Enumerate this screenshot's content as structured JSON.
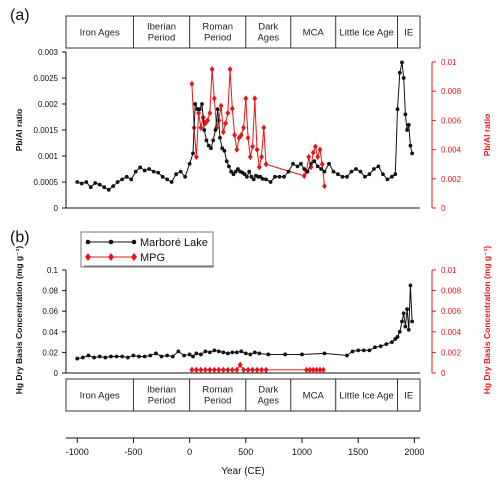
{
  "colors": {
    "black_series": "#111111",
    "red_series": "#e8141a"
  },
  "periods": [
    {
      "label": "Iron Ages",
      "start": -1000,
      "end": -500
    },
    {
      "label": "Iberian Period",
      "start": -500,
      "end": 0
    },
    {
      "label": "Roman Period",
      "start": 0,
      "end": 500
    },
    {
      "label": "Dark Ages",
      "start": 500,
      "end": 900
    },
    {
      "label": "MCA",
      "start": 900,
      "end": 1300
    },
    {
      "label": "Little Ice Age",
      "start": 1300,
      "end": 1850
    },
    {
      "label": "IE",
      "start": 1850,
      "end": 2000
    }
  ],
  "legend": {
    "items": [
      "Marboré Lake",
      "MPG"
    ]
  },
  "chart_data": [
    {
      "type": "line",
      "panel": "(a)",
      "ylabel": "Pb/Al ratio",
      "y2label": "Pb/Al ratio",
      "xlim": [
        -1100,
        2050
      ],
      "ylim": [
        0,
        0.003
      ],
      "y2lim": [
        0,
        0.01
      ],
      "yticks": [
        "0",
        "0.0005",
        "0.001",
        "0.0015",
        "0.002",
        "0.0025",
        "0.003"
      ],
      "y2ticks": [
        "0",
        "0.002",
        "0.004",
        "0.006",
        "0.008",
        "0.01"
      ],
      "series": [
        {
          "name": "Marboré Lake",
          "axis": "left",
          "x": [
            -1000,
            -960,
            -920,
            -880,
            -840,
            -800,
            -760,
            -720,
            -680,
            -640,
            -600,
            -560,
            -520,
            -480,
            -440,
            -400,
            -360,
            -320,
            -280,
            -240,
            -200,
            -160,
            -120,
            -80,
            -40,
            0,
            30,
            50,
            70,
            90,
            110,
            130,
            150,
            170,
            190,
            210,
            230,
            250,
            270,
            290,
            310,
            330,
            350,
            370,
            390,
            410,
            430,
            450,
            470,
            490,
            510,
            530,
            550,
            570,
            590,
            610,
            630,
            650,
            680,
            720,
            760,
            800,
            840,
            880,
            920,
            960,
            990,
            1020,
            1050,
            1080,
            1110,
            1140,
            1170,
            1200,
            1240,
            1280,
            1320,
            1360,
            1400,
            1440,
            1480,
            1520,
            1560,
            1600,
            1640,
            1680,
            1720,
            1760,
            1800,
            1830,
            1850,
            1870,
            1890,
            1905,
            1920,
            1935,
            1950,
            1965,
            1980
          ],
          "values": [
            0.0005,
            0.00047,
            0.0005,
            0.0004,
            0.00048,
            0.00045,
            0.0004,
            0.00035,
            0.00042,
            0.0005,
            0.00055,
            0.0006,
            0.00055,
            0.0007,
            0.00078,
            0.00072,
            0.00075,
            0.0007,
            0.00068,
            0.0006,
            0.00055,
            0.0005,
            0.00065,
            0.0007,
            0.0006,
            0.00085,
            0.00105,
            0.002,
            0.0019,
            0.0019,
            0.002,
            0.0015,
            0.0013,
            0.0012,
            0.00115,
            0.0013,
            0.0015,
            0.0019,
            0.00135,
            0.00115,
            0.0011,
            0.0009,
            0.0008,
            0.0007,
            0.00065,
            0.0007,
            0.00075,
            0.0007,
            0.00068,
            0.00065,
            0.0006,
            0.0007,
            0.0006,
            0.00055,
            0.00062,
            0.0006,
            0.0006,
            0.00056,
            0.00055,
            0.0005,
            0.0006,
            0.0006,
            0.0006,
            0.0007,
            0.00085,
            0.0008,
            0.00085,
            0.00075,
            0.0007,
            0.00085,
            0.0009,
            0.0008,
            0.00075,
            0.0007,
            0.00085,
            0.0007,
            0.00065,
            0.0006,
            0.0006,
            0.0007,
            0.00075,
            0.0007,
            0.0006,
            0.00065,
            0.00075,
            0.0008,
            0.00065,
            0.00055,
            0.0006,
            0.00065,
            0.0019,
            0.0026,
            0.0028,
            0.0025,
            0.0018,
            0.0015,
            0.0016,
            0.0012,
            0.00105
          ]
        },
        {
          "name": "MPG",
          "axis": "right",
          "x": [
            20,
            40,
            60,
            80,
            100,
            120,
            140,
            160,
            180,
            200,
            220,
            240,
            260,
            280,
            300,
            320,
            340,
            360,
            380,
            400,
            420,
            440,
            460,
            480,
            500,
            520,
            540,
            560,
            580,
            600,
            620,
            640,
            660,
            680,
            1020,
            1040,
            1060,
            1080,
            1100,
            1120,
            1140,
            1160,
            1180,
            1200
          ],
          "values": [
            0.0085,
            0.0055,
            0.0035,
            0.0065,
            0.0055,
            0.0062,
            0.0058,
            0.006,
            0.0065,
            0.0095,
            0.0075,
            0.0055,
            0.006,
            0.007,
            0.0052,
            0.0058,
            0.0065,
            0.0095,
            0.0068,
            0.005,
            0.004,
            0.0048,
            0.005,
            0.0055,
            0.0075,
            0.0048,
            0.0035,
            0.0042,
            0.0075,
            0.004,
            0.0028,
            0.0035,
            0.0055,
            0.003,
            0.0022,
            0.0025,
            0.0035,
            0.0028,
            0.0038,
            0.0042,
            0.0035,
            0.004,
            0.003,
            0.0015
          ]
        }
      ]
    },
    {
      "type": "line",
      "panel": "(b)",
      "xlabel": "Year (CE)",
      "ylabel": "Hg Dry Basis Concentration (mg g⁻¹)",
      "y2label": "Hg Dry Basis Concentration (mg g⁻¹)",
      "xlim": [
        -1100,
        2050
      ],
      "ylim": [
        0,
        0.1
      ],
      "y2lim": [
        0,
        0.01
      ],
      "xticks": [
        -1000,
        -500,
        0,
        500,
        1000,
        1500,
        2000
      ],
      "yticks": [
        "0",
        "0.02",
        "0.04",
        "0.06",
        "0.08",
        "0.1"
      ],
      "y2ticks": [
        "0",
        "0.002",
        "0.004",
        "0.006",
        "0.008",
        "0.01"
      ],
      "series": [
        {
          "name": "Marboré Lake",
          "axis": "left",
          "x": [
            -1000,
            -950,
            -900,
            -850,
            -800,
            -750,
            -700,
            -650,
            -600,
            -550,
            -500,
            -450,
            -400,
            -350,
            -300,
            -250,
            -200,
            -150,
            -100,
            -50,
            0,
            30,
            60,
            100,
            140,
            180,
            220,
            260,
            300,
            340,
            380,
            420,
            460,
            500,
            540,
            580,
            620,
            700,
            850,
            1000,
            1200,
            1400,
            1450,
            1500,
            1550,
            1600,
            1650,
            1700,
            1750,
            1800,
            1830,
            1850,
            1870,
            1890,
            1905,
            1920,
            1935,
            1950,
            1965,
            1980
          ],
          "values": [
            0.014,
            0.015,
            0.017,
            0.015,
            0.016,
            0.015,
            0.016,
            0.016,
            0.016,
            0.015,
            0.017,
            0.016,
            0.016,
            0.017,
            0.019,
            0.016,
            0.017,
            0.016,
            0.021,
            0.017,
            0.018,
            0.016,
            0.019,
            0.018,
            0.021,
            0.02,
            0.022,
            0.021,
            0.02,
            0.019,
            0.02,
            0.02,
            0.021,
            0.019,
            0.018,
            0.02,
            0.019,
            0.018,
            0.018,
            0.018,
            0.019,
            0.017,
            0.021,
            0.022,
            0.022,
            0.022,
            0.025,
            0.026,
            0.028,
            0.03,
            0.033,
            0.035,
            0.04,
            0.05,
            0.058,
            0.045,
            0.062,
            0.042,
            0.085,
            0.05
          ]
        },
        {
          "name": "MPG",
          "axis": "right",
          "x": [
            20,
            60,
            100,
            140,
            180,
            220,
            260,
            300,
            340,
            380,
            420,
            450,
            480,
            520,
            560,
            600,
            640,
            680,
            1040,
            1070,
            1100,
            1130,
            1160,
            1190
          ],
          "values": [
            0.0003,
            0.0003,
            0.0003,
            0.0003,
            0.0003,
            0.0003,
            0.0003,
            0.0003,
            0.0003,
            0.0003,
            0.0003,
            0.0008,
            0.0003,
            0.0003,
            0.0003,
            0.0003,
            0.0003,
            0.0003,
            0.0003,
            0.0003,
            0.0003,
            0.0003,
            0.0003,
            0.0003
          ]
        }
      ]
    }
  ]
}
